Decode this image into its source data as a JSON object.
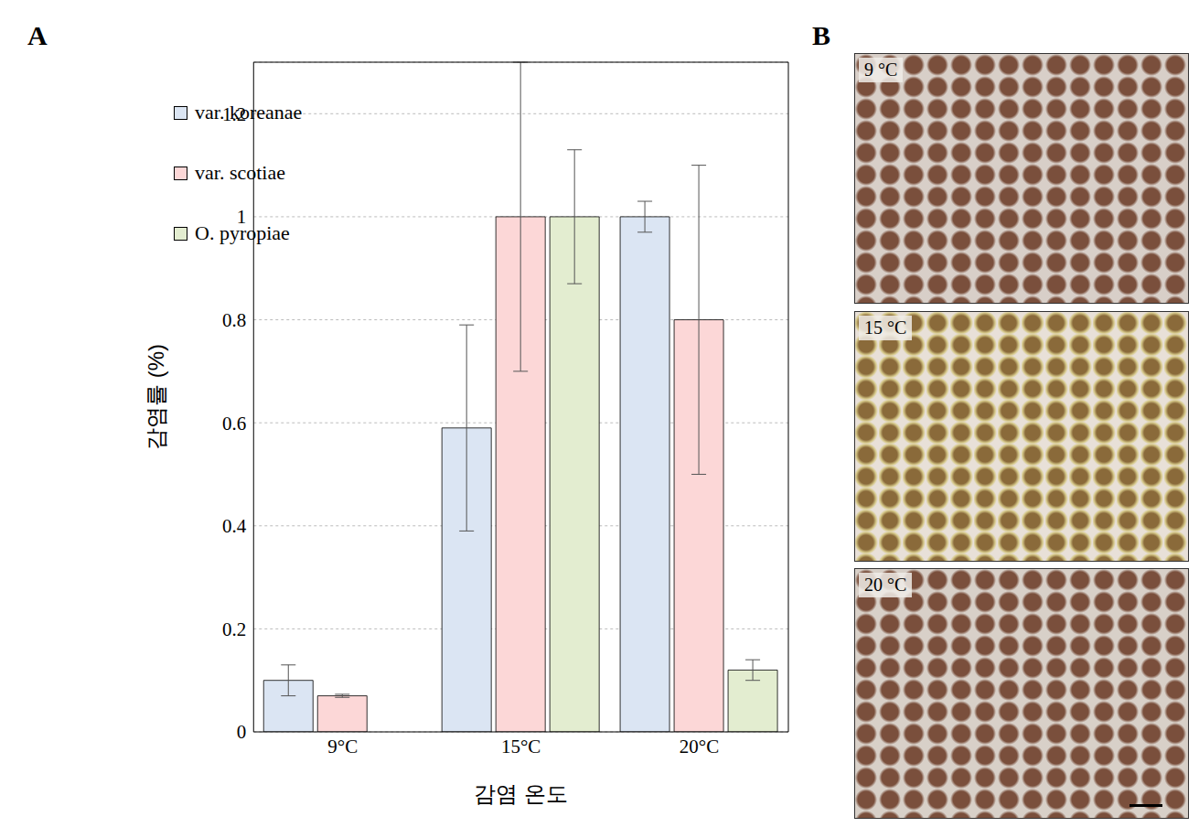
{
  "chart_data": {
    "type": "bar",
    "annotations": [
      "A"
    ],
    "categories": [
      "9°C",
      "15°C",
      "20°C"
    ],
    "x_label": "감염 온도",
    "y_label": "감염률 (%)",
    "ylim": [
      0,
      1.3
    ],
    "yticks": [
      0,
      0.2,
      0.4,
      0.6,
      0.8,
      1,
      1.2
    ],
    "grid": true,
    "legend": "upper left",
    "series": [
      {
        "name": "var. koreanae",
        "color": "#dbe5f3",
        "values": [
          0.1,
          0.59,
          1.0
        ],
        "errors": [
          0.03,
          0.2,
          0.03
        ]
      },
      {
        "name": "var. scotiae",
        "color": "#fcd7d7",
        "values": [
          0.07,
          1.0,
          0.8
        ],
        "errors": [
          0.003,
          0.3,
          0.3
        ]
      },
      {
        "name": "O. pyropiae",
        "color": "#e3edd0",
        "values": [
          null,
          1.0,
          0.12
        ],
        "errors": [
          null,
          0.13,
          0.02
        ]
      }
    ]
  },
  "panel_b": {
    "label": "B",
    "images": [
      "9 °C",
      "15 °C",
      "20 °C"
    ]
  }
}
